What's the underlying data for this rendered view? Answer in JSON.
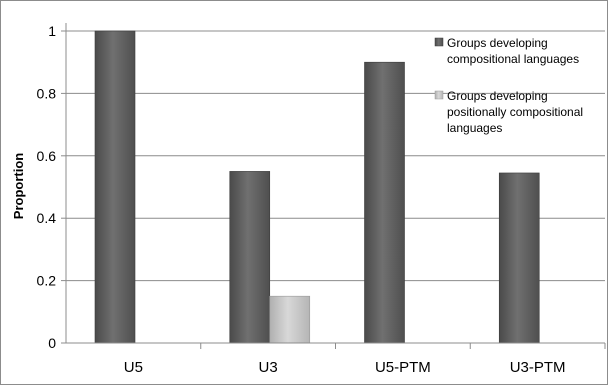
{
  "chart_data": {
    "type": "bar",
    "title": "",
    "xlabel": "",
    "ylabel": "Proportion",
    "ylim": [
      0,
      1
    ],
    "yticks": [
      "0",
      "0.2",
      "0.4",
      "0.6",
      "0.8",
      "1"
    ],
    "grid": true,
    "legend_position": "top-right",
    "categories": [
      "U5",
      "U3",
      "U5-PTM",
      "U3-PTM"
    ],
    "series": [
      {
        "name": "Groups developing compositional languages",
        "legend_lines": [
          "Groups developing",
          "compositional languages"
        ],
        "color": "#5e5e5e",
        "values": [
          1.0,
          0.55,
          0.9,
          0.545
        ]
      },
      {
        "name": "Groups developing positionally compositional languages",
        "legend_lines": [
          "Groups developing",
          "positionally compositional",
          "languages"
        ],
        "color": "#c4c4c4",
        "values": [
          0,
          0.15,
          0,
          0
        ]
      }
    ]
  }
}
